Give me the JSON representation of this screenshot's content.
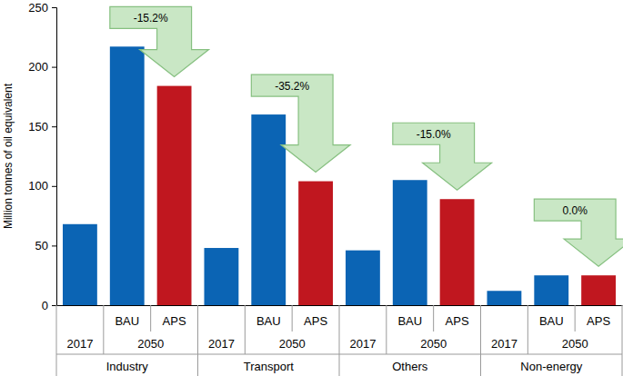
{
  "chart_data": {
    "type": "bar",
    "y_label": "Million tonnes of oil equivalent",
    "categories": [
      null,
      "BAU",
      "APS",
      null,
      "BAU",
      "APS",
      null,
      "BAU",
      "APS",
      null,
      "BAU",
      "APS"
    ],
    "values": [
      68,
      217,
      184,
      48,
      160,
      104,
      46,
      105,
      89,
      12,
      25,
      25
    ],
    "colors": [
      "#0b64b4",
      "#0b64b4",
      "#c0171f",
      "#0b64b4",
      "#0b64b4",
      "#c0171f",
      "#0b64b4",
      "#0b64b4",
      "#c0171f",
      "#0b64b4",
      "#0b64b4",
      "#c0171f"
    ],
    "periods": [
      "2017",
      "2050",
      "2017",
      "2050",
      "2017",
      "2050",
      "2017",
      "2050"
    ],
    "sectors": [
      "Industry",
      "Transport",
      "Others",
      "Non-energy"
    ],
    "annotations": [
      "-15.2%",
      "-35.2%",
      "-15.0%",
      "0.0%"
    ],
    "ylim": [
      0,
      250
    ],
    "yticks": [
      0,
      50,
      100,
      150,
      200,
      250
    ],
    "grid": false
  }
}
